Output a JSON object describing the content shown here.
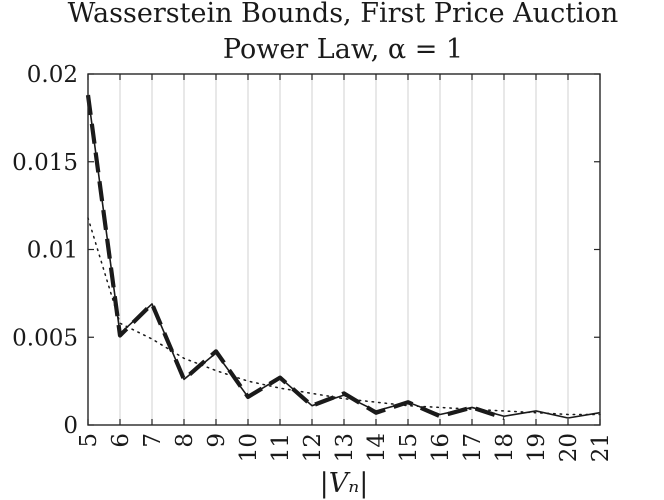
{
  "chart_data": {
    "type": "line",
    "title": "Wasserstein Bounds, First Price Auction",
    "subtitle": "Power Law, α = 1",
    "xlabel": "|Vₙ|",
    "ylabel": "",
    "x": [
      5,
      6,
      7,
      8,
      9,
      10,
      11,
      12,
      13,
      14,
      15,
      16,
      17,
      18,
      19,
      20,
      21
    ],
    "xlim": [
      5,
      21
    ],
    "ylim": [
      0,
      0.02
    ],
    "xticks": [
      5,
      6,
      7,
      8,
      9,
      10,
      11,
      12,
      13,
      14,
      15,
      16,
      17,
      18,
      19,
      20,
      21
    ],
    "yticks": [
      0,
      0.005,
      0.01,
      0.015,
      0.02
    ],
    "ytick_labels": [
      "0",
      "0.005",
      "0.01",
      "0.015",
      "0.02"
    ],
    "grid": "vertical",
    "series": [
      {
        "style": "solid",
        "color": "#1a1a1a",
        "values": [
          0.0188,
          0.0052,
          0.0069,
          0.0026,
          0.0041,
          0.0016,
          0.0027,
          0.0011,
          0.0017,
          0.0008,
          0.0013,
          0.0006,
          0.001,
          0.0005,
          0.0008,
          0.0004,
          0.0007
        ]
      },
      {
        "style": "dashed",
        "color": "#1a1a1a",
        "values": [
          0.0188,
          0.0051,
          0.0069,
          0.0026,
          0.0042,
          0.0016,
          0.0027,
          0.0011,
          0.0018,
          0.0007,
          0.0013,
          0.0005,
          0.001,
          0.0004,
          null,
          null,
          null
        ]
      },
      {
        "style": "dotted",
        "color": "#1a1a1a",
        "values": [
          0.0118,
          0.0058,
          0.0049,
          0.0038,
          0.0031,
          0.0025,
          0.0021,
          0.0018,
          0.0015,
          0.0013,
          0.0011,
          0.001,
          0.0009,
          0.0008,
          0.0007,
          0.0006,
          0.0006
        ]
      }
    ]
  }
}
